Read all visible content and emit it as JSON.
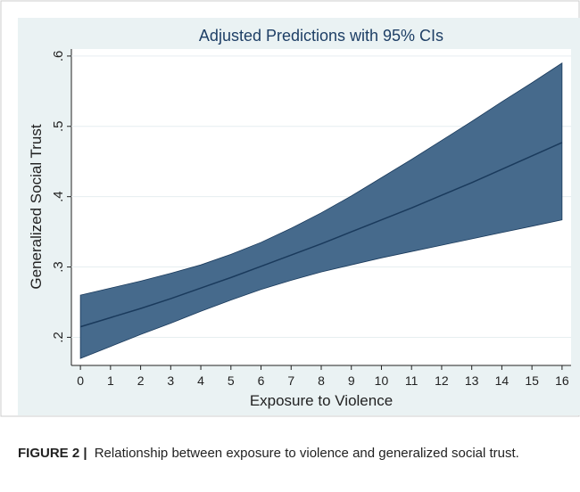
{
  "chart_data": {
    "type": "ci_band",
    "title": "Adjusted Predictions with 95% CIs",
    "x_label": "Exposure to Violence",
    "y_label": "Generalized Social Trust",
    "x": [
      0,
      1,
      2,
      3,
      4,
      5,
      6,
      7,
      8,
      9,
      10,
      11,
      12,
      13,
      14,
      15,
      16
    ],
    "predicted": [
      0.215,
      0.228,
      0.241,
      0.255,
      0.27,
      0.285,
      0.301,
      0.317,
      0.333,
      0.35,
      0.367,
      0.384,
      0.402,
      0.42,
      0.439,
      0.458,
      0.477
    ],
    "ci_lower": [
      0.17,
      0.187,
      0.204,
      0.22,
      0.237,
      0.253,
      0.268,
      0.281,
      0.293,
      0.303,
      0.313,
      0.322,
      0.331,
      0.34,
      0.349,
      0.358,
      0.367
    ],
    "ci_upper": [
      0.26,
      0.27,
      0.28,
      0.291,
      0.303,
      0.318,
      0.335,
      0.355,
      0.377,
      0.401,
      0.427,
      0.453,
      0.48,
      0.507,
      0.535,
      0.562,
      0.59
    ],
    "band_color": "#466a8c",
    "line_color": "#1a3a5c",
    "xlim": [
      -0.3,
      16.3
    ],
    "xticks": [
      0,
      1,
      2,
      3,
      4,
      5,
      6,
      7,
      8,
      9,
      10,
      11,
      12,
      13,
      14,
      15,
      16
    ],
    "ylim": [
      0.16,
      0.61
    ],
    "yticks": [
      {
        "value": 0.2,
        "label": ".2"
      },
      {
        "value": 0.3,
        "label": ".3"
      },
      {
        "value": 0.4,
        "label": ".4"
      },
      {
        "value": 0.5,
        "label": ".5"
      },
      {
        "value": 0.6,
        "label": ".6"
      }
    ],
    "grid": true
  },
  "caption": {
    "label": "FIGURE 2 |",
    "text": "Relationship between exposure to violence and generalized social trust."
  }
}
